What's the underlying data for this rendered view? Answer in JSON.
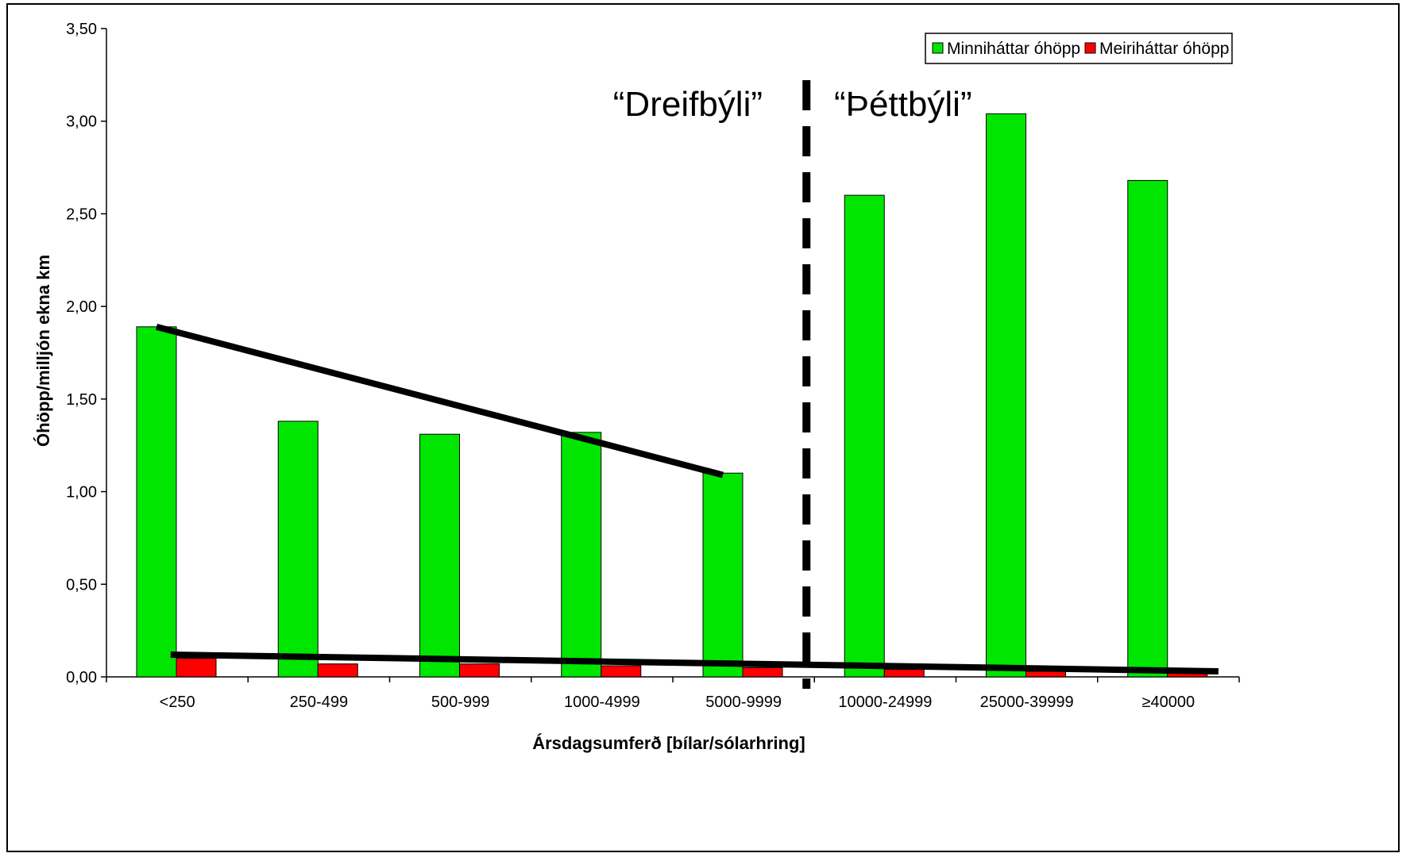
{
  "chart_data": {
    "type": "bar",
    "categories": [
      "<250",
      "250-499",
      "500-999",
      "1000-4999",
      "5000-9999",
      "10000-24999",
      "25000-39999",
      "≥40000"
    ],
    "series": [
      {
        "name": "Minniháttar óhöpp",
        "color": "#00e600",
        "values": [
          1.89,
          1.38,
          1.31,
          1.32,
          1.1,
          2.6,
          3.04,
          2.68
        ]
      },
      {
        "name": "Meiriháttar óhöpp",
        "color": "#ff0000",
        "values": [
          0.1,
          0.07,
          0.07,
          0.06,
          0.05,
          0.04,
          0.03,
          0.04
        ]
      }
    ],
    "xlabel": "Ársdagsumferð [bílar/sólarhring]",
    "ylabel": "Óhöpp/milljón ekna km",
    "ylim": [
      0,
      3.5
    ],
    "yticks": [
      "0,00",
      "0,50",
      "1,00",
      "1,50",
      "2,00",
      "2,50",
      "3,00",
      "3,50"
    ],
    "grid": false,
    "legend_position": "top-right",
    "annotations": {
      "left_region": "“Dreifbýli”",
      "right_region": "“Þéttbýli”"
    },
    "trend_lines": [
      {
        "x_from": 0,
        "y_from": 1.89,
        "x_to": 4,
        "y_to": 1.09
      },
      {
        "x_from": 0.1,
        "y_from": 0.12,
        "x_to": 7.5,
        "y_to": 0.03
      }
    ],
    "divider_after_category": 4
  }
}
